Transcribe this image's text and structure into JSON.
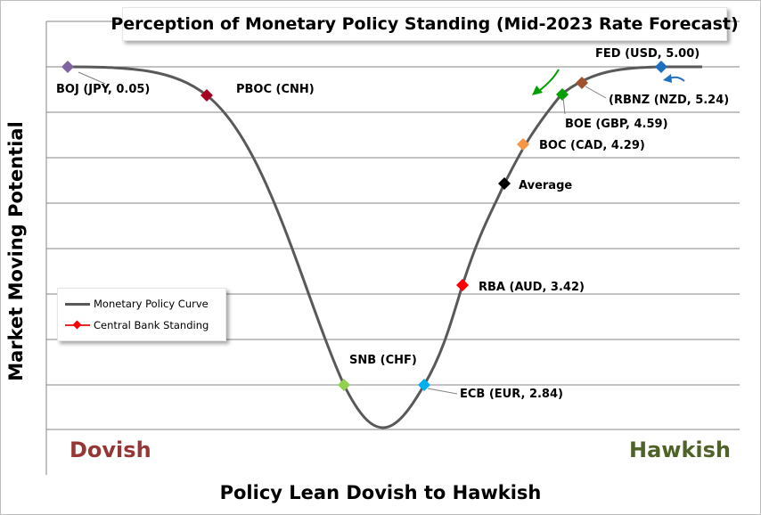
{
  "chart_data": {
    "type": "line",
    "title": "Perception of Monetary Policy Standing (Mid-2023 Rate Forecast)",
    "xlabel": "Policy Lean Dovish to Hawkish",
    "ylabel": "Market Moving Potential",
    "x_end_labels": {
      "left": "Dovish",
      "right": "Hawkish"
    },
    "grid": "horizontal",
    "series": [
      {
        "name": "Monetary Policy Curve",
        "color": "#595959"
      },
      {
        "name": "Central Bank Standing",
        "color": "#ff0000"
      }
    ],
    "points": [
      {
        "label": "BOJ (JPY, 0.05)",
        "color": "#8064a2"
      },
      {
        "label": "PBOC (CNH)",
        "color": "#a50021"
      },
      {
        "label": "SNB (CHF)",
        "color": "#92d050"
      },
      {
        "label": "ECB (EUR, 2.84)",
        "color": "#00b0f0"
      },
      {
        "label": "RBA (AUD, 3.42)",
        "color": "#ff0000"
      },
      {
        "label": "Average",
        "color": "#000000"
      },
      {
        "label": "BOC (CAD, 4.29)",
        "color": "#f79646"
      },
      {
        "label": "BOE (GBP, 4.59)",
        "color": "#00a000"
      },
      {
        "label": "(RBNZ (NZD, 5.24)",
        "color": "#a0522d"
      },
      {
        "label": "FED (USD, 5.00)",
        "color": "#1f6fbf"
      }
    ],
    "legend_placement": "left-bottom"
  },
  "colors": {
    "dovish": "#953735",
    "hawkish": "#4f6228",
    "curve": "#595959",
    "gridline": "#868686",
    "arrow_green": "#00a000",
    "arrow_blue": "#1f6fbf"
  }
}
